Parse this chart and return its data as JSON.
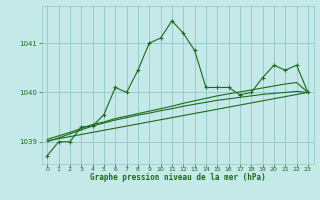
{
  "title": "Graphe pression niveau de la mer (hPa)",
  "bg_color": "#c5e8e8",
  "grid_color": "#8fc8c8",
  "line_color": "#1a6b1a",
  "xlim": [
    -0.5,
    23.5
  ],
  "ylim": [
    1038.55,
    1041.75
  ],
  "yticks": [
    1039,
    1040,
    1041
  ],
  "xticks": [
    0,
    1,
    2,
    3,
    4,
    5,
    6,
    7,
    8,
    9,
    10,
    11,
    12,
    13,
    14,
    15,
    16,
    17,
    18,
    19,
    20,
    21,
    22,
    23
  ],
  "series": [
    {
      "x": [
        0,
        1,
        2,
        3,
        4,
        5,
        6,
        7,
        8,
        9,
        10,
        11,
        12,
        13,
        14,
        15,
        16,
        17,
        18,
        19,
        20,
        21,
        22,
        23
      ],
      "y": [
        1038.72,
        1039.0,
        1039.0,
        1039.3,
        1039.32,
        1039.55,
        1040.1,
        1040.0,
        1040.45,
        1041.0,
        1041.1,
        1041.45,
        1041.2,
        1040.85,
        1040.1,
        1040.1,
        1040.1,
        1039.95,
        1040.0,
        1040.3,
        1040.55,
        1040.45,
        1040.55,
        1040.0
      ],
      "marker": true
    },
    {
      "x": [
        0,
        1,
        2,
        3,
        4,
        5,
        6,
        7,
        8,
        9,
        10,
        11,
        12,
        13,
        14,
        15,
        16,
        17,
        18,
        19,
        20,
        21,
        22,
        23
      ],
      "y": [
        1039.0,
        1039.08,
        1039.16,
        1039.24,
        1039.32,
        1039.38,
        1039.44,
        1039.49,
        1039.54,
        1039.58,
        1039.63,
        1039.67,
        1039.72,
        1039.76,
        1039.8,
        1039.84,
        1039.87,
        1039.9,
        1039.93,
        1039.96,
        1039.98,
        1040.0,
        1040.02,
        1040.0
      ],
      "marker": false
    },
    {
      "x": [
        0,
        1,
        2,
        3,
        4,
        5,
        6,
        7,
        8,
        9,
        10,
        11,
        12,
        13,
        14,
        15,
        16,
        17,
        18,
        19,
        20,
        21,
        22,
        23
      ],
      "y": [
        1039.05,
        1039.12,
        1039.19,
        1039.27,
        1039.35,
        1039.4,
        1039.47,
        1039.52,
        1039.57,
        1039.62,
        1039.67,
        1039.72,
        1039.78,
        1039.83,
        1039.88,
        1039.93,
        1039.97,
        1040.01,
        1040.05,
        1040.09,
        1040.13,
        1040.17,
        1040.2,
        1040.0
      ],
      "marker": false
    },
    {
      "x": [
        0,
        23
      ],
      "y": [
        1039.02,
        1040.0
      ],
      "marker": false
    }
  ]
}
